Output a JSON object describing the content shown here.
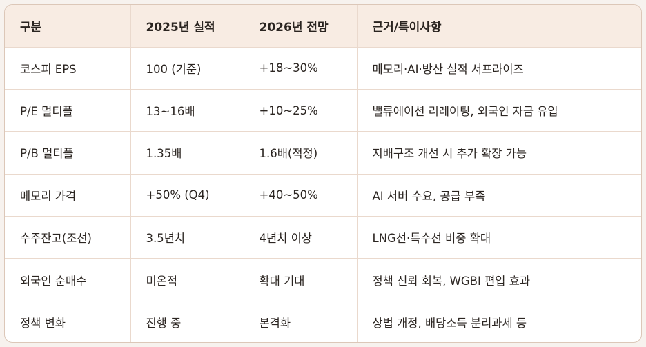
{
  "headers": [
    "구분",
    "2025년 실적",
    "2026년 전망",
    "근거/특이사항"
  ],
  "rows": [
    [
      "코스피 EPS",
      "100 (기준)",
      "+18~30%",
      "메모리·AI·방산 실적 서프라이즈"
    ],
    [
      "P/E 멀티플",
      "13~16배",
      "+10~25%",
      "밸류에이션 리레이팅, 외국인 자금 유입"
    ],
    [
      "P/B 멀티플",
      "1.35배",
      "1.6배(적정)",
      "지배구조 개선 시 추가 확장 가능"
    ],
    [
      "메모리 가격",
      "+50% (Q4)",
      "+40~50%",
      "AI 서버 수요, 공급 부족"
    ],
    [
      "수주잔고(조선)",
      "3.5년치",
      "4년치 이상",
      "LNG선·특수선 비중 확대"
    ],
    [
      "외국인 순매수",
      "미온적",
      "확대 기대",
      "정책 신뢰 회복, WGBI 편입 효과"
    ],
    [
      "정책 변화",
      "진행 중",
      "본격화",
      "상법 개정, 배당소득 분리과세 등"
    ]
  ]
}
